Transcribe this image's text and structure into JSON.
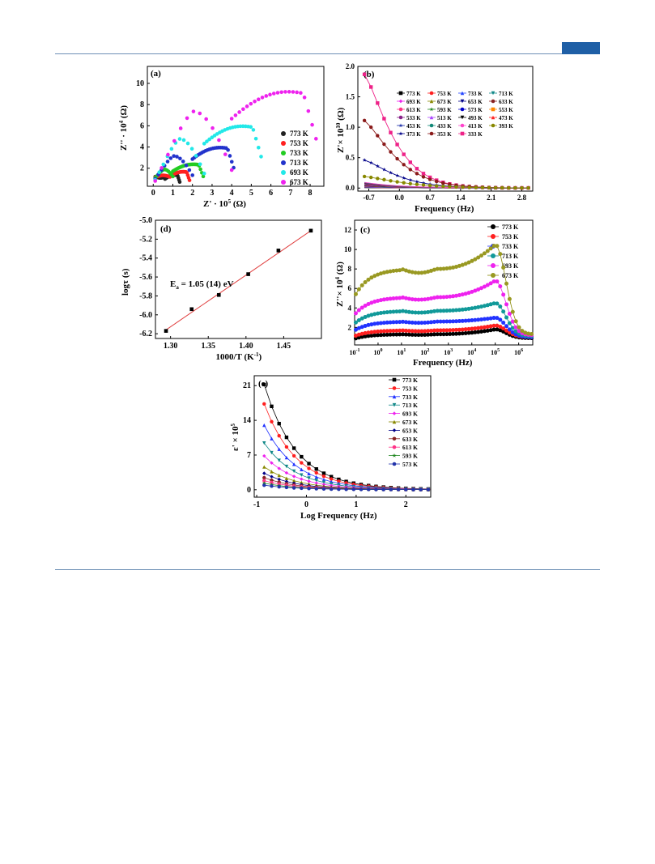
{
  "page": {
    "accent": "#1f5fa6",
    "rule_color": "#6d8fb5"
  },
  "chart_data": [
    {
      "id": "a",
      "type": "scatter",
      "panel_label": "(a)",
      "xlabel": "Z' · 10",
      "xlabel_sup": "5",
      "xlabel_unit": " (Ω)",
      "ylabel": "Z'' · 10",
      "ylabel_sup": "4",
      "ylabel_unit": " (Ω)",
      "xlim": [
        -0.3,
        8.7
      ],
      "ylim": [
        0.3,
        11.6
      ],
      "xticks": [
        0,
        1,
        2,
        3,
        4,
        5,
        6,
        7,
        8
      ],
      "yticks": [
        2,
        4,
        6,
        8,
        10
      ],
      "legend": "right",
      "series": [
        {
          "name": "773 K",
          "color": "#222222",
          "peak": [
            0.85,
            1.55
          ],
          "xmax": 1.35,
          "ymin": 1.2,
          "arcs": [
            [
              0.1,
              0.6
            ],
            [
              0.6,
              1.35
            ]
          ]
        },
        {
          "name": "753 K",
          "color": "#ff2020",
          "peak": [
            1.2,
            1.9
          ],
          "xmax": 1.85,
          "ymin": 1.15,
          "arcs": [
            [
              0.1,
              0.85
            ],
            [
              0.85,
              1.85
            ]
          ]
        },
        {
          "name": "733 K",
          "color": "#22cc22",
          "peak": [
            1.95,
            2.7
          ],
          "xmax": 2.55,
          "ymin": 1.1,
          "arcs": [
            [
              0.1,
              1.0
            ],
            [
              1.0,
              2.55
            ]
          ]
        },
        {
          "name": "713 K",
          "color": "#2233cc",
          "peak": [
            1.0,
            4.5
          ],
          "xmax": 4.1,
          "ymin": 1.0,
          "arcs": [
            [
              0.1,
              2.0
            ],
            [
              2.0,
              4.1
            ]
          ]
        },
        {
          "name": "693 K",
          "color": "#22e8e8",
          "peak": [
            1.3,
            6.8
          ],
          "xmax": 5.5,
          "ymin": 0.9,
          "arcs": [
            [
              0.1,
              2.6
            ],
            [
              2.6,
              5.5
            ]
          ]
        },
        {
          "name": "673 K",
          "color": "#ee22ee",
          "peak": [
            2.0,
            10.5
          ],
          "xmax": 8.3,
          "ymin": 0.8,
          "arcs": [
            [
              0.1,
              4.0
            ],
            [
              4.0,
              8.3
            ]
          ]
        }
      ]
    },
    {
      "id": "b",
      "type": "line",
      "panel_label": "(b)",
      "xlabel": "Frequency (Hz)",
      "ylabel": "Z'× 10",
      "ylabel_sup": "10",
      "ylabel_unit": " (Ω)",
      "xlim": [
        -0.95,
        3.05
      ],
      "ylim": [
        -0.05,
        2.0
      ],
      "xticks": [
        -0.7,
        0.0,
        0.7,
        1.4,
        2.1,
        2.8
      ],
      "xtick_labels": [
        "-0.7",
        "0.0",
        "0.7",
        "1.4",
        "2.1",
        "2.8"
      ],
      "yticks": [
        0.0,
        0.5,
        1.0,
        1.5,
        2.0
      ],
      "ytick_labels": [
        "0.0",
        "0.5",
        "1.0",
        "1.5",
        "2.0"
      ],
      "legend": "top-right",
      "series_names": [
        "773 K",
        "753 K",
        "733 K",
        "713 K",
        "693 K",
        "673 K",
        "653 K",
        "633 K",
        "613 K",
        "593 K",
        "573 K",
        "553 K",
        "533 K",
        "513 K",
        "493 K",
        "473 K",
        "453 K",
        "433 K",
        "413 K",
        "393 K",
        "373 K",
        "353 K",
        "333 K"
      ],
      "series_colors": [
        "#000000",
        "#ff2020",
        "#2244ff",
        "#118888",
        "#ee22ee",
        "#888800",
        "#000088",
        "#882222",
        "#ff3388",
        "#228822",
        "#0000cc",
        "#ff8800",
        "#882288",
        "#aa44ff",
        "#000000",
        "#ff2222",
        "#2233aa",
        "#118877",
        "#ff44cc",
        "#888800",
        "#000088",
        "#8a1a1a",
        "#ee2288"
      ],
      "x": [
        -0.8,
        -0.65,
        -0.5,
        -0.35,
        -0.2,
        -0.05,
        0.1,
        0.25,
        0.4,
        0.55,
        0.7,
        0.85,
        1.0,
        1.15,
        1.3,
        1.45,
        1.6,
        1.75,
        1.9,
        2.05,
        2.2,
        2.35,
        2.5,
        2.65,
        2.8,
        2.95
      ],
      "highlighted": [
        {
          "name": "333 K",
          "y0": 1.87
        },
        {
          "name": "353 K",
          "y0": 1.11
        },
        {
          "name": "373 K",
          "y0": 0.46
        },
        {
          "name": "393 K",
          "y0": 0.19
        }
      ]
    },
    {
      "id": "d",
      "type": "scatter",
      "panel_label": "(d)",
      "xlabel": "1000/T (K",
      "xlabel_sup": "-1",
      "xlabel_unit": ")",
      "ylabel": "logτ (s)",
      "annotation": "E",
      "annotation_sub": "a",
      "annotation_rest": " = 1.05 (14) eV",
      "xlim": [
        1.28,
        1.5
      ],
      "ylim": [
        -6.25,
        -5.0
      ],
      "xticks": [
        1.3,
        1.35,
        1.4,
        1.45
      ],
      "xtick_labels": [
        "1.30",
        "1.35",
        "1.40",
        "1.45"
      ],
      "yticks": [
        -6.2,
        -6.0,
        -5.8,
        -5.6,
        -5.4,
        -5.2,
        -5.0
      ],
      "ytick_labels": [
        "-6.2",
        "-6.0",
        "-5.8",
        "-5.6",
        "-5.4",
        "-5.2",
        "-5.0"
      ],
      "points": [
        [
          1.294,
          -6.17
        ],
        [
          1.328,
          -5.94
        ],
        [
          1.364,
          -5.79
        ],
        [
          1.403,
          -5.57
        ],
        [
          1.443,
          -5.32
        ],
        [
          1.486,
          -5.11
        ]
      ],
      "fit": [
        [
          1.292,
          -6.17
        ],
        [
          1.487,
          -5.105
        ]
      ]
    },
    {
      "id": "c",
      "type": "line",
      "panel_label": "(c)",
      "xlabel": "Frequency (Hz)",
      "ylabel": "Z''× 10",
      "ylabel_sup": "4",
      "ylabel_unit": " (Ω)",
      "xlim": [
        -1.0,
        6.6
      ],
      "ylim": [
        0.2,
        13.0
      ],
      "xticks": [
        -1,
        0,
        1,
        2,
        3,
        4,
        5,
        6
      ],
      "xtick_labels": [
        "10",
        "10",
        "10",
        "10",
        "10",
        "10",
        "10",
        "10"
      ],
      "xtick_sups": [
        "-1",
        "0",
        "1",
        "2",
        "3",
        "4",
        "5",
        "6"
      ],
      "yticks": [
        2,
        4,
        6,
        8,
        10,
        12
      ],
      "legend": "top-right",
      "series": [
        {
          "name": "773 K",
          "color": "#111111",
          "fill": "#000000",
          "plateau": 1.3,
          "peak": 1.8,
          "tail": 0.9
        },
        {
          "name": "753 K",
          "color": "#ff2020",
          "fill": "#ff2020",
          "plateau": 1.7,
          "peak": 2.2,
          "tail": 1.0
        },
        {
          "name": "733 K",
          "color": "#2233ff",
          "fill": "#2233ff",
          "plateau": 2.6,
          "peak": 3.0,
          "tail": 1.0
        },
        {
          "name": "713 K",
          "color": "#118888",
          "fill": "#119999",
          "plateau": 3.7,
          "peak": 4.5,
          "tail": 1.1
        },
        {
          "name": "693 K",
          "color": "#ee22ee",
          "fill": "#ee22ee",
          "plateau": 5.1,
          "peak": 6.8,
          "tail": 1.2
        },
        {
          "name": "673 K",
          "color": "#888800",
          "fill": "#999922",
          "plateau": 8.0,
          "peak": 10.5,
          "tail": 1.3
        }
      ]
    },
    {
      "id": "e",
      "type": "line",
      "panel_label": "(e)",
      "xlabel": "Log Frequency (Hz)",
      "ylabel": "ε' × 10",
      "ylabel_sup": "5",
      "xlim": [
        -1.05,
        2.5
      ],
      "ylim": [
        -1.5,
        23.0
      ],
      "xticks": [
        -1,
        0,
        1,
        2
      ],
      "xtick_labels": [
        "-1",
        "0",
        "1",
        "2"
      ],
      "yticks": [
        0,
        7,
        14,
        21
      ],
      "ytick_labels": [
        "0",
        "7",
        "14",
        "21"
      ],
      "legend": "top-right",
      "x": [
        -0.85,
        -0.7,
        -0.55,
        -0.4,
        -0.25,
        -0.1,
        0.05,
        0.2,
        0.35,
        0.5,
        0.65,
        0.8,
        0.95,
        1.1,
        1.25,
        1.4,
        1.55,
        1.7,
        1.85,
        2.0,
        2.15,
        2.3,
        2.45
      ],
      "series": [
        {
          "name": "773 K",
          "color": "#000000",
          "y0": 21.2
        },
        {
          "name": "753 K",
          "color": "#ff2020",
          "y0": 17.3
        },
        {
          "name": "733 K",
          "color": "#2233ff",
          "y0": 13.0
        },
        {
          "name": "713 K",
          "color": "#118888",
          "y0": 9.4
        },
        {
          "name": "693 K",
          "color": "#ee22ee",
          "y0": 6.8
        },
        {
          "name": "673 K",
          "color": "#888800",
          "y0": 4.6
        },
        {
          "name": "653 K",
          "color": "#000088",
          "y0": 3.3
        },
        {
          "name": "633 K",
          "color": "#882222",
          "y0": 2.4
        },
        {
          "name": "613 K",
          "color": "#ff3388",
          "y0": 1.8
        },
        {
          "name": "593 K",
          "color": "#228822",
          "y0": 1.3
        },
        {
          "name": "573 K",
          "color": "#2233aa",
          "y0": 0.9
        }
      ]
    }
  ]
}
